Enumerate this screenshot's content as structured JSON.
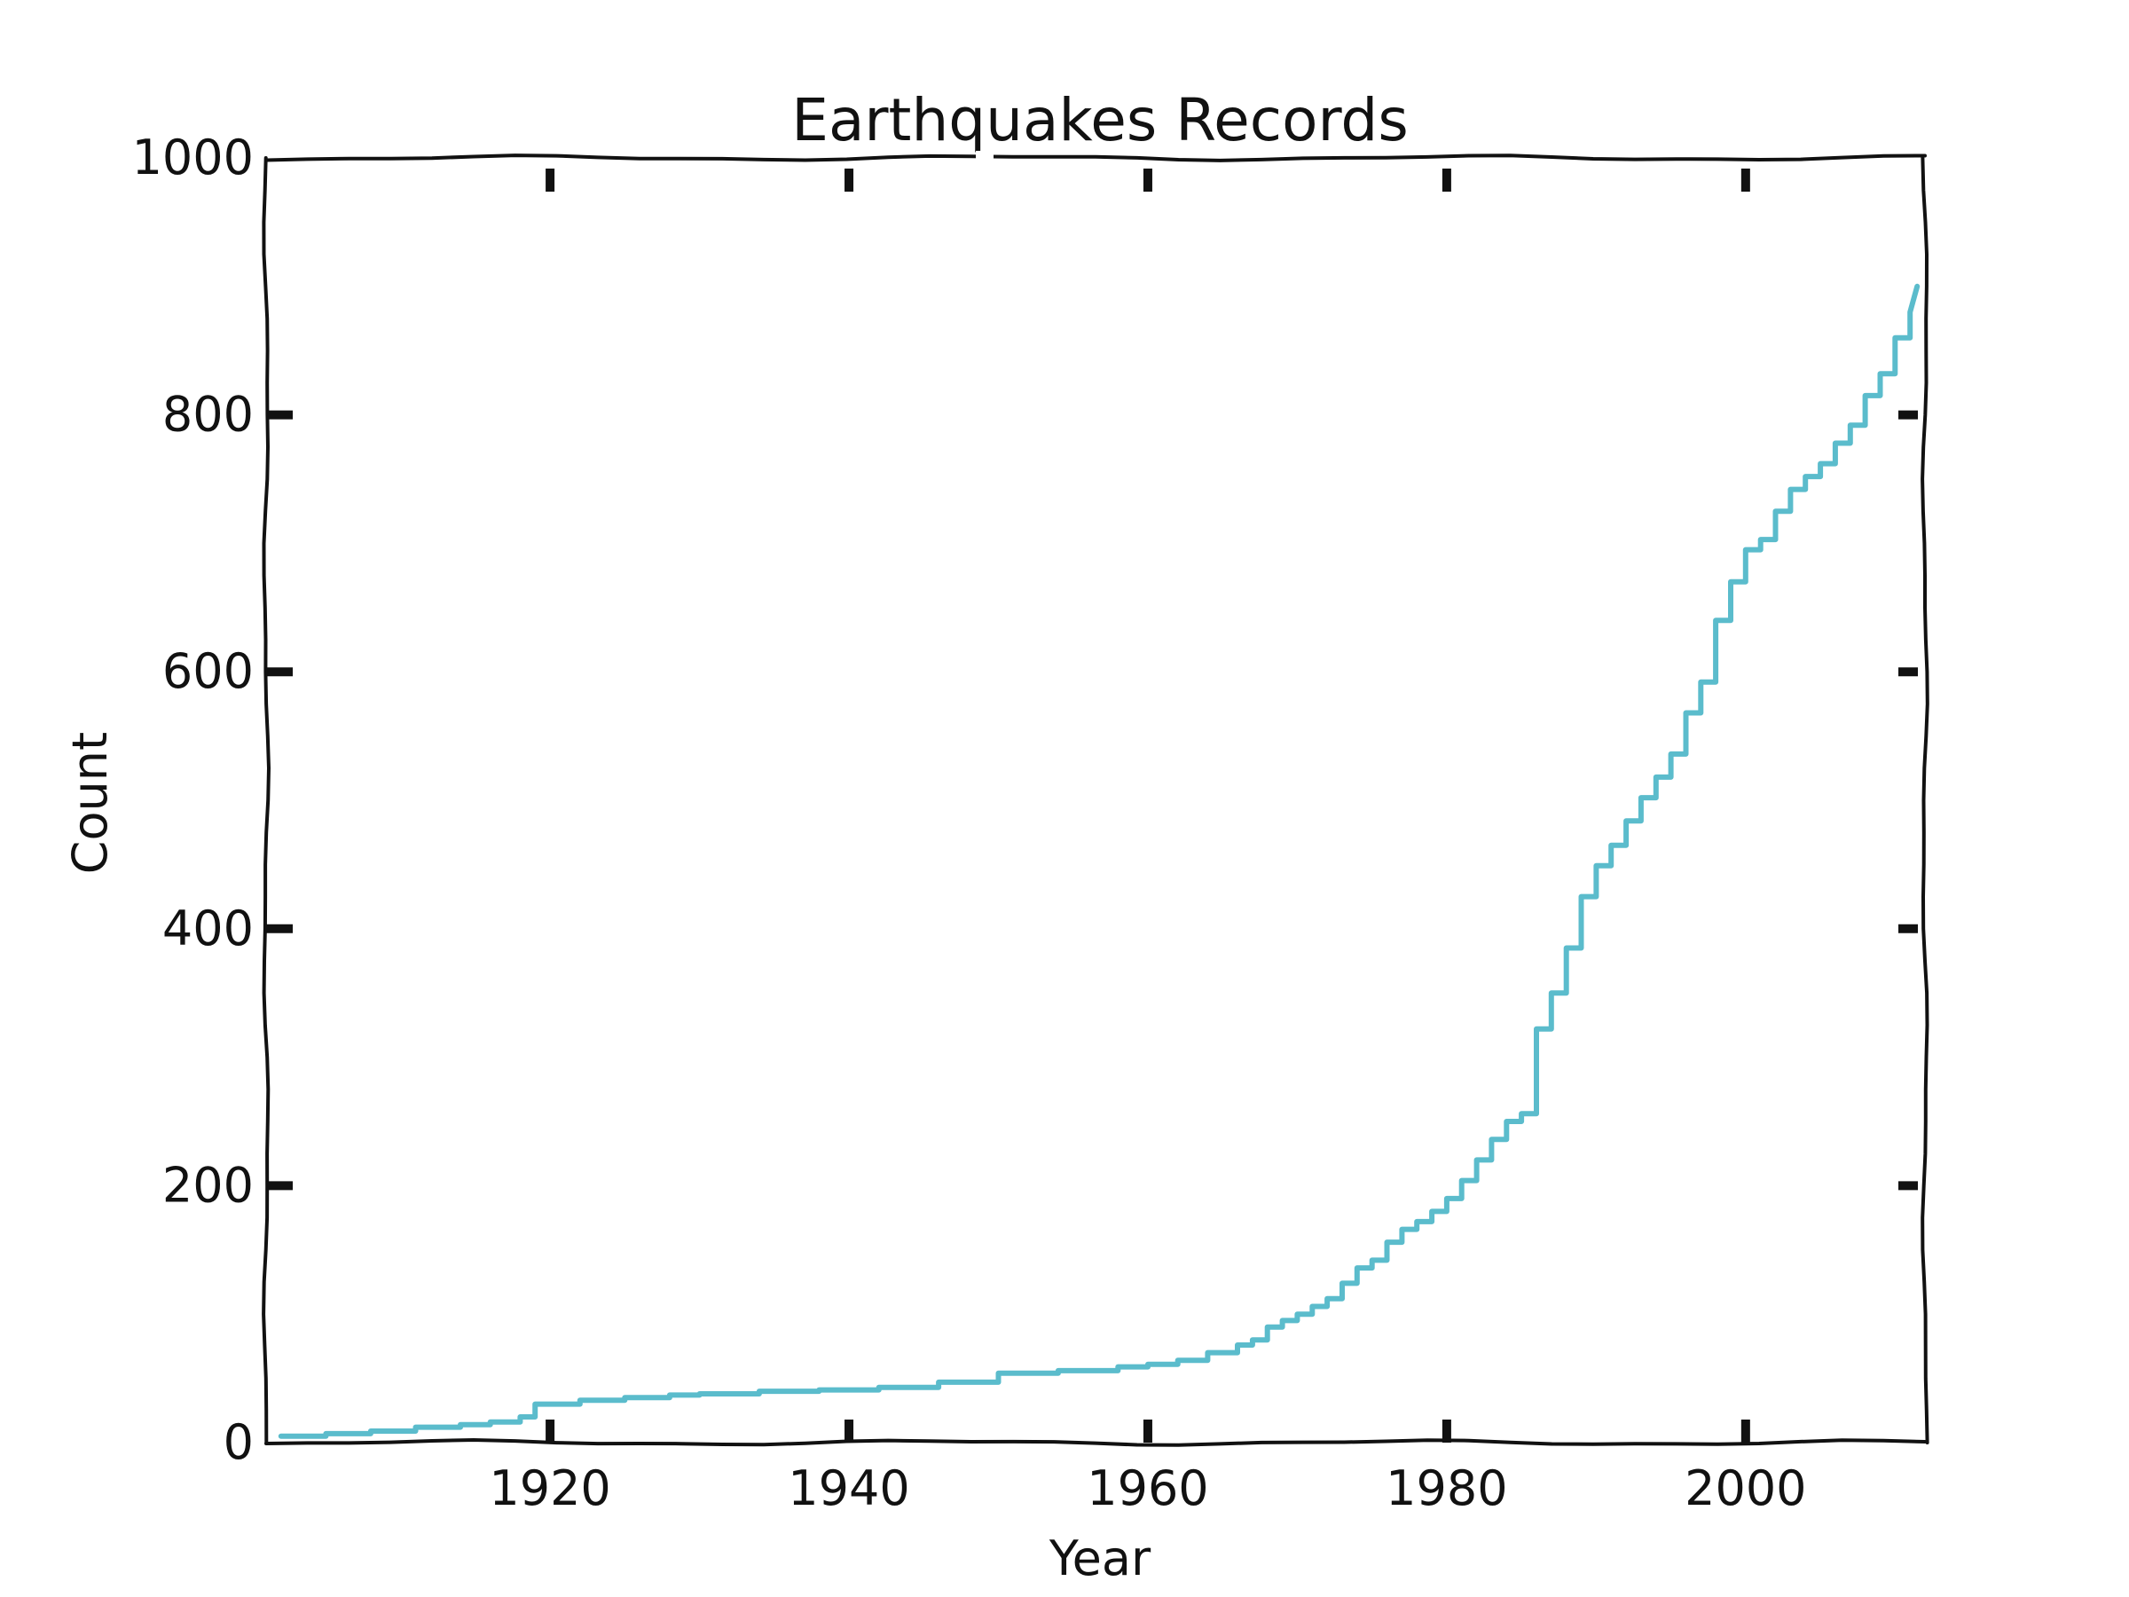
{
  "chart_data": {
    "type": "line",
    "style": "xkcd",
    "title": "Earthquakes Records",
    "xlabel": "Year",
    "ylabel": "Count",
    "xlim": [
      1901,
      2012
    ],
    "ylim": [
      0,
      1000
    ],
    "x_ticks": [
      1920,
      1940,
      1960,
      1980,
      2000
    ],
    "x_tick_labels": [
      "1920",
      "1940",
      "1960",
      "1980",
      "2000"
    ],
    "y_ticks": [
      0,
      200,
      400,
      600,
      800,
      1000
    ],
    "y_tick_labels": [
      "0",
      "200",
      "400",
      "600",
      "800",
      "1000"
    ],
    "grid": false,
    "series": [
      {
        "color": "#5bbccc",
        "x": [
          1902,
          1905,
          1908,
          1911,
          1914,
          1916,
          1918,
          1919,
          1922,
          1925,
          1928,
          1930,
          1934,
          1938,
          1942,
          1946,
          1950,
          1954,
          1958,
          1960,
          1962,
          1964,
          1966,
          1967,
          1968,
          1969,
          1970,
          1971,
          1972,
          1973,
          1974,
          1975,
          1976,
          1977,
          1978,
          1979,
          1980,
          1981,
          1982,
          1983,
          1984,
          1985,
          1986,
          1987,
          1988,
          1989,
          1990,
          1991,
          1992,
          1993,
          1994,
          1995,
          1996,
          1997,
          1998,
          1999,
          2000,
          2001,
          2002,
          2003,
          2004,
          2005,
          2006,
          2007,
          2008,
          2009,
          2010,
          2011
        ],
        "y": [
          5,
          7,
          9,
          12,
          14,
          16,
          20,
          30,
          33,
          35,
          37,
          38,
          40,
          41,
          43,
          47,
          54,
          56,
          59,
          61,
          64,
          70,
          76,
          80,
          90,
          95,
          100,
          106,
          112,
          124,
          136,
          142,
          156,
          166,
          172,
          180,
          190,
          204,
          220,
          236,
          250,
          256,
          322,
          350,
          385,
          425,
          449,
          465,
          484,
          502,
          518,
          536,
          568,
          592,
          640,
          670,
          695,
          703,
          725,
          742,
          752,
          762,
          778,
          792,
          815,
          832,
          860,
          880
        ]
      }
    ]
  }
}
